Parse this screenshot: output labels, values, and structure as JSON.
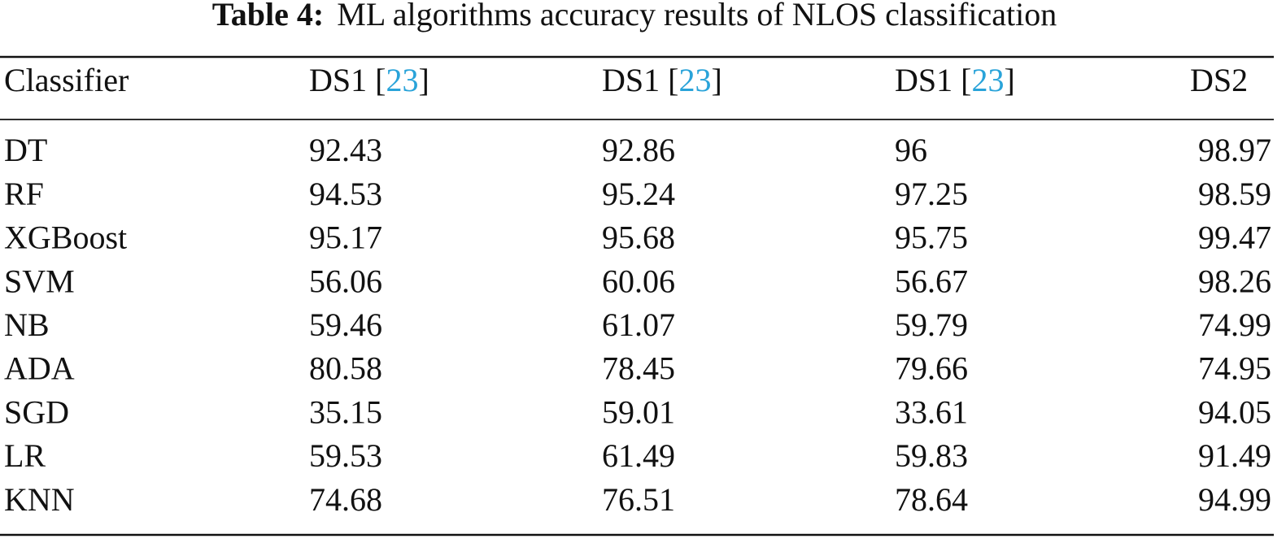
{
  "caption": {
    "label": "Table 4:",
    "text": "ML algorithms accuracy results of NLOS classification"
  },
  "table": {
    "header": [
      [
        "Classifier"
      ],
      [
        "DS1 [",
        "23",
        "]"
      ],
      [
        "DS1 [",
        "23",
        "]"
      ],
      [
        "DS1 [",
        "23",
        "]"
      ],
      [
        "DS2"
      ]
    ],
    "rows": [
      [
        "DT",
        "92.43",
        "92.86",
        "96",
        "98.97"
      ],
      [
        "RF",
        "94.53",
        "95.24",
        "97.25",
        "98.59"
      ],
      [
        "XGBoost",
        "95.17",
        "95.68",
        "95.75",
        "99.47"
      ],
      [
        "SVM",
        "56.06",
        "60.06",
        "56.67",
        "98.26"
      ],
      [
        "NB",
        "59.46",
        "61.07",
        "59.79",
        "74.99"
      ],
      [
        "ADA",
        "80.58",
        "78.45",
        "79.66",
        "74.95"
      ],
      [
        "SGD",
        "35.15",
        "59.01",
        "33.61",
        "94.05"
      ],
      [
        "LR",
        "59.53",
        "61.49",
        "59.83",
        "91.49"
      ],
      [
        "KNN",
        "74.68",
        "76.51",
        "78.64",
        "94.99"
      ]
    ]
  }
}
